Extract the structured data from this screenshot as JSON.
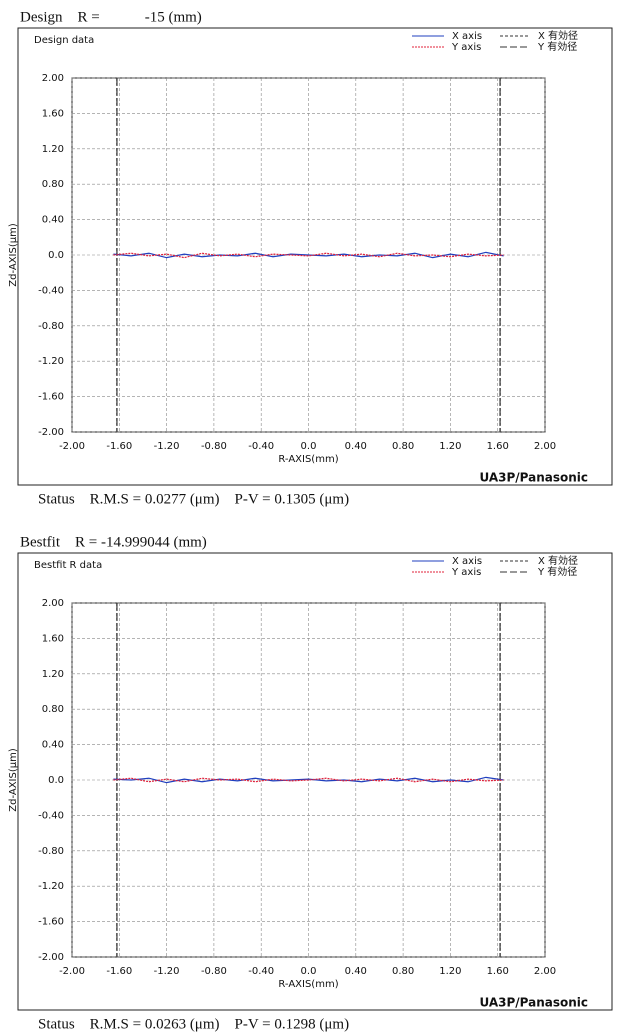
{
  "chart_data": [
    {
      "type": "line",
      "header": "Design　R =　　　-15 (mm)",
      "title": "Design data",
      "x_label": "R-AXIS(mm)",
      "y_label": "Zd-AXIS(μm)",
      "brand": "UA3P/Panasonic",
      "status": "Status　R.M.S = 0.0277 (μm)　P-V = 0.1305 (μm)",
      "x": [
        -1.65,
        -1.5,
        -1.35,
        -1.2,
        -1.05,
        -0.9,
        -0.75,
        -0.6,
        -0.45,
        -0.3,
        -0.15,
        0,
        0.15,
        0.3,
        0.45,
        0.6,
        0.75,
        0.9,
        1.05,
        1.2,
        1.35,
        1.5,
        1.65
      ],
      "series": [
        {
          "name": "X axis",
          "color": "#1f3fbf",
          "dash": "none",
          "values": [
            0.01,
            -0.01,
            0.02,
            -0.03,
            0.01,
            -0.02,
            0.0,
            -0.01,
            0.02,
            -0.02,
            0.01,
            0.0,
            -0.01,
            0.01,
            -0.02,
            0.0,
            -0.01,
            0.02,
            -0.03,
            0.01,
            -0.02,
            0.03,
            -0.01
          ]
        },
        {
          "name": "Y axis",
          "color": "#e0203a",
          "dash": "2 1",
          "values": [
            0.0,
            0.02,
            -0.01,
            0.01,
            -0.03,
            0.02,
            -0.01,
            0.01,
            -0.02,
            0.01,
            0.0,
            -0.01,
            0.02,
            -0.01,
            0.01,
            -0.02,
            0.02,
            -0.01,
            0.0,
            -0.02,
            0.01,
            -0.01,
            0.0
          ]
        }
      ],
      "effective_diameter": [
        {
          "name": "X 有効径",
          "color": "#333333",
          "dash": "3 2",
          "x": [
            -1.62,
            1.62
          ]
        },
        {
          "name": "Y 有効径",
          "color": "#333333",
          "dash": "7 3",
          "x": [
            -1.62,
            1.62
          ]
        }
      ],
      "xlim": [
        -2,
        2
      ],
      "xticks": [
        {
          "value": -2,
          "label": "-2.00"
        },
        {
          "value": -1.6,
          "label": "-1.60"
        },
        {
          "value": -1.2,
          "label": "-1.20"
        },
        {
          "value": -0.8,
          "label": "-0.80"
        },
        {
          "value": -0.4,
          "label": "-0.40"
        },
        {
          "value": 0,
          "label": "0.0"
        },
        {
          "value": 0.4,
          "label": "0.40"
        },
        {
          "value": 0.8,
          "label": "0.80"
        },
        {
          "value": 1.2,
          "label": "1.20"
        },
        {
          "value": 1.6,
          "label": "1.60"
        },
        {
          "value": 2,
          "label": "2.00"
        }
      ],
      "ylim": [
        -2,
        2
      ],
      "yticks": [
        {
          "value": 2,
          "label": "2.00"
        },
        {
          "value": 1.6,
          "label": "1.60"
        },
        {
          "value": 1.2,
          "label": "1.20"
        },
        {
          "value": 0.8,
          "label": "0.80"
        },
        {
          "value": 0.4,
          "label": "0.40"
        },
        {
          "value": 0,
          "label": "0.0"
        },
        {
          "value": -0.4,
          "label": "-0.40"
        },
        {
          "value": -0.8,
          "label": "-0.80"
        },
        {
          "value": -1.2,
          "label": "-1.20"
        },
        {
          "value": -1.6,
          "label": "-1.60"
        },
        {
          "value": -2,
          "label": "-2.00"
        }
      ],
      "grid": true
    },
    {
      "type": "line",
      "header": "Bestfit　R = -14.999044 (mm)",
      "title": "Bestfit R data",
      "x_label": "R-AXIS(mm)",
      "y_label": "Zd-AXIS(μm)",
      "brand": "UA3P/Panasonic",
      "status": "Status　R.M.S = 0.0263 (μm)　P-V = 0.1298 (μm)",
      "x": [
        -1.65,
        -1.5,
        -1.35,
        -1.2,
        -1.05,
        -0.9,
        -0.75,
        -0.6,
        -0.45,
        -0.3,
        -0.15,
        0,
        0.15,
        0.3,
        0.45,
        0.6,
        0.75,
        0.9,
        1.05,
        1.2,
        1.35,
        1.5,
        1.65
      ],
      "series": [
        {
          "name": "X axis",
          "color": "#1f3fbf",
          "dash": "none",
          "values": [
            0.01,
            0.0,
            0.02,
            -0.03,
            0.01,
            -0.02,
            0.01,
            -0.01,
            0.02,
            -0.01,
            0.0,
            0.01,
            -0.01,
            0.0,
            -0.02,
            0.01,
            -0.01,
            0.02,
            -0.02,
            0.0,
            -0.02,
            0.03,
            0.0
          ]
        },
        {
          "name": "Y axis",
          "color": "#e0203a",
          "dash": "2 1",
          "values": [
            0.0,
            0.02,
            -0.02,
            0.01,
            -0.02,
            0.02,
            0.0,
            0.01,
            -0.02,
            0.01,
            -0.01,
            0.0,
            0.02,
            -0.01,
            0.01,
            -0.01,
            0.02,
            -0.02,
            0.01,
            -0.02,
            0.01,
            -0.01,
            0.0
          ]
        }
      ],
      "effective_diameter": [
        {
          "name": "X 有効径",
          "color": "#333333",
          "dash": "3 2",
          "x": [
            -1.62,
            1.62
          ]
        },
        {
          "name": "Y 有効径",
          "color": "#333333",
          "dash": "7 3",
          "x": [
            -1.62,
            1.62
          ]
        }
      ],
      "xlim": [
        -2,
        2
      ],
      "xticks": [
        {
          "value": -2,
          "label": "-2.00"
        },
        {
          "value": -1.6,
          "label": "-1.60"
        },
        {
          "value": -1.2,
          "label": "-1.20"
        },
        {
          "value": -0.8,
          "label": "-0.80"
        },
        {
          "value": -0.4,
          "label": "-0.40"
        },
        {
          "value": 0,
          "label": "0.0"
        },
        {
          "value": 0.4,
          "label": "0.40"
        },
        {
          "value": 0.8,
          "label": "0.80"
        },
        {
          "value": 1.2,
          "label": "1.20"
        },
        {
          "value": 1.6,
          "label": "1.60"
        },
        {
          "value": 2,
          "label": "2.00"
        }
      ],
      "ylim": [
        -2,
        2
      ],
      "yticks": [
        {
          "value": 2,
          "label": "2.00"
        },
        {
          "value": 1.6,
          "label": "1.60"
        },
        {
          "value": 1.2,
          "label": "1.20"
        },
        {
          "value": 0.8,
          "label": "0.80"
        },
        {
          "value": 0.4,
          "label": "0.40"
        },
        {
          "value": 0,
          "label": "0.0"
        },
        {
          "value": -0.4,
          "label": "-0.40"
        },
        {
          "value": -0.8,
          "label": "-0.80"
        },
        {
          "value": -1.2,
          "label": "-1.20"
        },
        {
          "value": -1.6,
          "label": "-1.60"
        },
        {
          "value": -2,
          "label": "-2.00"
        }
      ],
      "grid": true
    }
  ]
}
